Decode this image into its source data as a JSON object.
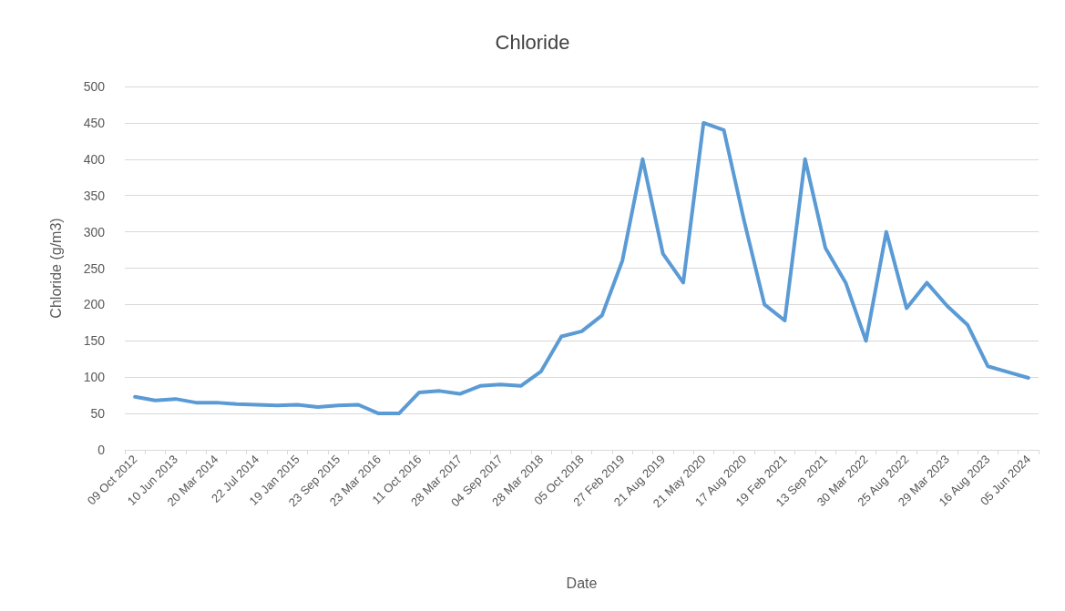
{
  "chart_data": {
    "type": "line",
    "title": "Chloride",
    "xlabel": "Date",
    "ylabel": "Chloride (g/m3)",
    "categories": [
      "09 Oct 2012",
      null,
      "10 Jun 2013",
      null,
      "20 Mar 2014",
      null,
      "22 Jul 2014",
      null,
      "19 Jan 2015",
      null,
      "23 Sep 2015",
      null,
      "23 Mar 2016",
      null,
      "11 Oct 2016",
      null,
      "28 Mar 2017",
      null,
      "04 Sep 2017",
      null,
      "28 Mar 2018",
      null,
      "05 Oct 2018",
      null,
      "27 Feb 2019",
      null,
      "21 Aug 2019",
      null,
      "21 May 2020",
      null,
      "17 Aug 2020",
      null,
      "19 Feb 2021",
      null,
      "13 Sep 2021",
      null,
      "30 Mar 2022",
      null,
      "25 Aug 2022",
      null,
      "29 Mar 2023",
      null,
      "16 Aug 2023",
      null,
      "05 Jun 2024"
    ],
    "series": [
      {
        "color": "#5b9bd5",
        "values": [
          73,
          68,
          70,
          65,
          65,
          63,
          62,
          61,
          62,
          59,
          61,
          62,
          50,
          50,
          79,
          81,
          77,
          88,
          90,
          88,
          108,
          156,
          163,
          185,
          260,
          400,
          270,
          230,
          450,
          440,
          315,
          200,
          178,
          400,
          278,
          230,
          150,
          300,
          195,
          230,
          198,
          172,
          115,
          107,
          99
        ]
      }
    ],
    "ylim": [
      0,
      500
    ],
    "yticks": [
      0,
      50,
      100,
      150,
      200,
      250,
      300,
      350,
      400,
      450,
      500
    ],
    "grid": "y",
    "marker": "none",
    "line_style": "solid"
  }
}
